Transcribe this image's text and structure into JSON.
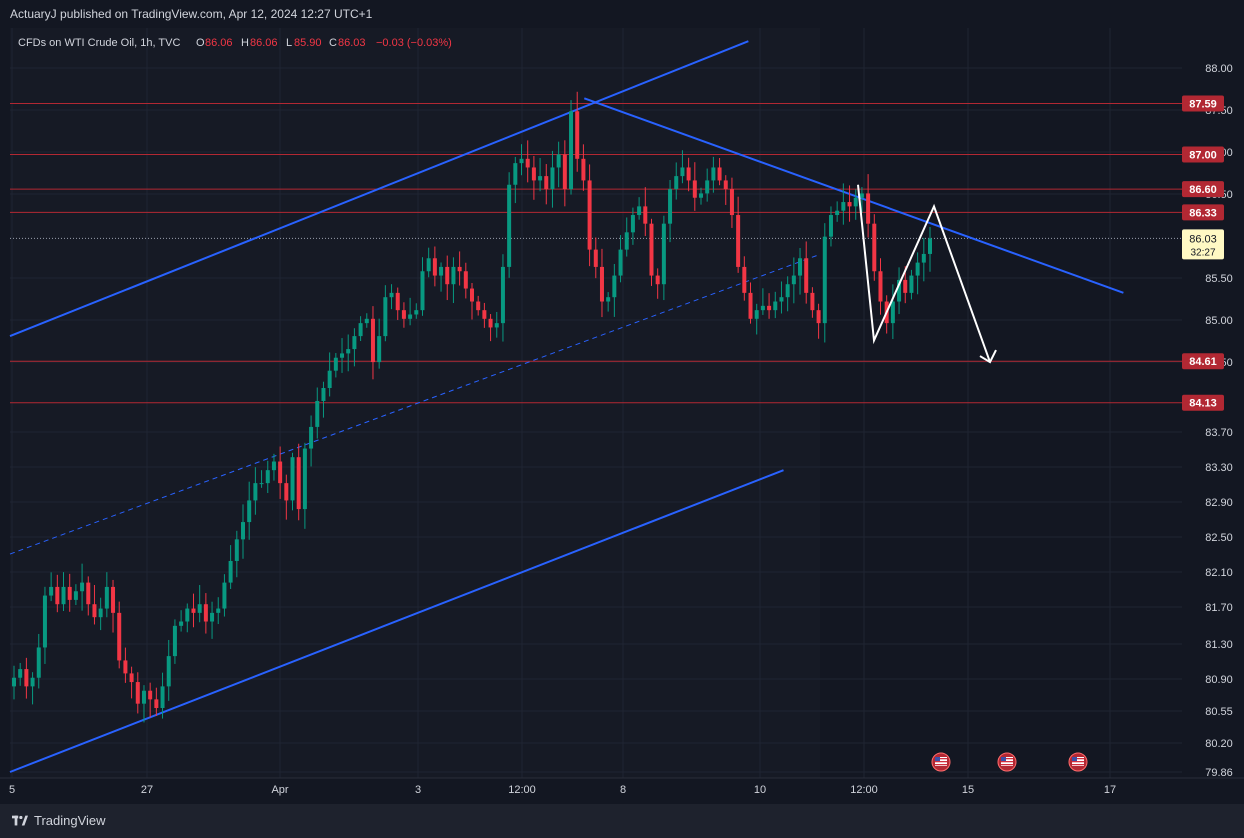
{
  "header": {
    "published": "ActuaryJ published on TradingView.com, Apr 12, 2024 12:27 UTC+1"
  },
  "legend": {
    "symbol": "CFDs on WTI Crude Oil, 1h, TVC",
    "o_label": "O",
    "o_value": "86.06",
    "h_label": "H",
    "h_value": "86.06",
    "l_label": "L",
    "l_value": "85.90",
    "c_label": "C",
    "c_value": "86.03",
    "change": "−0.03 (−0.03%)"
  },
  "footer": {
    "brand": "TradingView"
  },
  "colors": {
    "background": "#131722",
    "projection_bg": "#161a25",
    "bull": "#089981",
    "bear": "#f23645",
    "channel": "#2962ff",
    "level": "#b22833",
    "level_label_bg": "#b22833",
    "current_label_bg": "#fff9c4",
    "drawing": "#ffffff",
    "axis_text": "#d1d4dc"
  },
  "chart_data": {
    "type": "candlestick",
    "symbol": "CFDs on WTI Crude Oil",
    "interval": "1h",
    "x_ticks": [
      "5",
      "27",
      "Apr",
      "3",
      "12:00",
      "8",
      "10",
      "12:00",
      "15",
      "17"
    ],
    "y_ticks": [
      "88.00",
      "87.50",
      "87.00",
      "86.50",
      "85.50",
      "85.00",
      "84.50",
      "83.70",
      "83.30",
      "82.90",
      "82.50",
      "82.10",
      "81.70",
      "81.30",
      "80.90",
      "80.55",
      "80.20",
      "79.86"
    ],
    "y_range": [
      79.86,
      88.0
    ],
    "price_levels": [
      87.59,
      87.0,
      86.6,
      86.33,
      84.61,
      84.13
    ],
    "price_level_labels": [
      "87.59",
      "87.00",
      "86.60",
      "86.33",
      "84.61",
      "84.13"
    ],
    "current_price": {
      "value": 86.03,
      "label": "86.03",
      "countdown": "32:27"
    },
    "close_path": [
      80.95,
      81.05,
      80.85,
      80.95,
      81.3,
      81.9,
      82.0,
      81.8,
      82.0,
      81.85,
      81.95,
      82.05,
      81.8,
      81.65,
      81.75,
      82.0,
      81.7,
      81.15,
      81.0,
      80.9,
      80.65,
      80.8,
      80.7,
      80.6,
      80.85,
      81.2,
      81.55,
      81.6,
      81.75,
      81.7,
      81.8,
      81.6,
      81.7,
      81.75,
      82.05,
      82.3,
      82.55,
      82.75,
      83.0,
      83.2,
      83.2,
      83.35,
      83.45,
      83.2,
      83.0,
      83.5,
      82.9,
      83.6,
      83.85,
      84.15,
      84.3,
      84.5,
      84.65,
      84.7,
      84.75,
      84.9,
      85.05,
      85.1,
      84.6,
      84.9,
      85.35,
      85.4,
      85.2,
      85.1,
      85.15,
      85.2,
      85.65,
      85.8,
      85.6,
      85.7,
      85.5,
      85.7,
      85.65,
      85.45,
      85.3,
      85.2,
      85.1,
      85.0,
      85.05,
      85.7,
      86.65,
      86.9,
      86.95,
      86.85,
      86.7,
      86.75,
      86.6,
      86.85,
      87.0,
      86.6,
      87.5,
      86.95,
      86.7,
      85.9,
      85.7,
      85.3,
      85.35,
      85.6,
      85.9,
      86.1,
      86.3,
      86.4,
      86.2,
      85.6,
      85.5,
      86.2,
      86.6,
      86.75,
      86.85,
      86.7,
      86.5,
      86.55,
      86.7,
      86.85,
      86.7,
      86.6,
      86.3,
      85.7,
      85.4,
      85.1,
      85.2,
      85.25,
      85.2,
      85.3,
      85.35,
      85.5,
      85.6,
      85.8,
      85.4,
      85.2,
      85.05,
      86.05,
      86.3,
      86.35,
      86.45,
      86.4,
      86.5,
      86.55,
      86.2,
      85.65,
      85.3,
      85.05,
      85.3,
      85.55,
      85.4,
      85.6,
      85.75,
      85.85,
      86.03
    ],
    "channel": {
      "upper": [
        [
          0,
          84.9
        ],
        [
          0.63,
          88.31
        ]
      ],
      "middle_dashed": [
        [
          0,
          82.38
        ],
        [
          0.69,
          85.84
        ]
      ],
      "lower": [
        [
          0,
          79.86
        ],
        [
          0.66,
          83.35
        ]
      ],
      "descending_resistance": [
        [
          0.49,
          87.65
        ],
        [
          0.95,
          85.4
        ]
      ]
    },
    "projection_path": [
      [
        86.65,
        "12:00"
      ],
      [
        84.85,
        "~"
      ],
      [
        86.4,
        "~"
      ],
      [
        84.6,
        "15"
      ]
    ],
    "event_markers": [
      "us-flag-icon",
      "us-flag-icon",
      "us-flag-icon"
    ]
  }
}
